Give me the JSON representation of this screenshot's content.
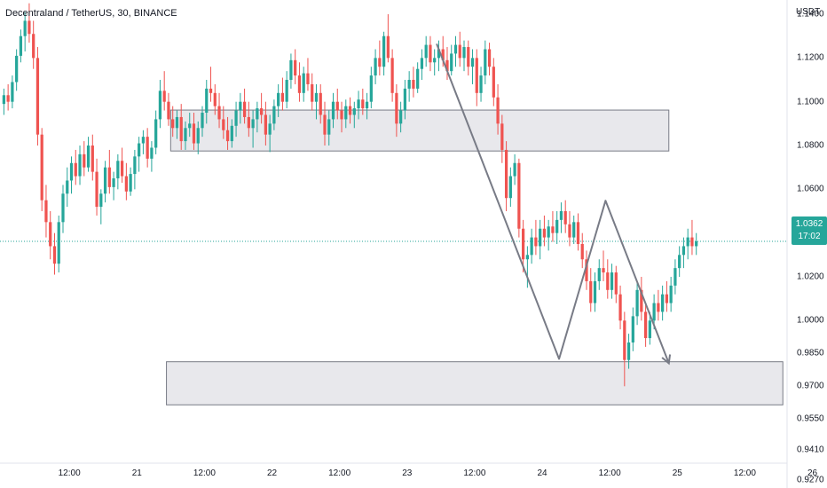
{
  "header": {
    "title": "Decentraland / TetherUS, 30, BINANCE"
  },
  "price_axis": {
    "unit": "USDT",
    "ticks": [
      "1.1400",
      "1.1200",
      "1.1000",
      "1.0800",
      "1.0600",
      "1.0400",
      "1.0200",
      "1.0000",
      "0.9850",
      "0.9700",
      "0.9550",
      "0.9410",
      "0.9270"
    ]
  },
  "time_axis": {
    "ticks": [
      "12:00",
      "21",
      "12:00",
      "22",
      "12:00",
      "23",
      "12:00",
      "24",
      "12:00",
      "25",
      "12:00",
      "26"
    ]
  },
  "last_price": {
    "value": "1.0362",
    "countdown": "17:02"
  },
  "colors": {
    "up": "#26a69a",
    "down": "#ef5350",
    "zone_fill": "#e8e8ec",
    "zone_stroke": "#787b86",
    "arrow": "#787b86",
    "last_price_line": "#26a69a"
  },
  "chart_data": {
    "type": "candlestick",
    "symbol": "Decentraland / TetherUS",
    "interval": "30",
    "exchange": "BINANCE",
    "ylabel": "USDT",
    "ylim": [
      0.9235,
      1.1465
    ],
    "xlim": [
      0,
      186
    ],
    "last_price": 1.0362,
    "ohlc": [
      {
        "o": 1.099,
        "h": 1.106,
        "l": 1.094,
        "c": 1.103
      },
      {
        "o": 1.103,
        "h": 1.108,
        "l": 1.096,
        "c": 1.1
      },
      {
        "o": 1.1,
        "h": 1.112,
        "l": 1.097,
        "c": 1.109
      },
      {
        "o": 1.109,
        "h": 1.124,
        "l": 1.105,
        "c": 1.121
      },
      {
        "o": 1.121,
        "h": 1.133,
        "l": 1.118,
        "c": 1.13
      },
      {
        "o": 1.13,
        "h": 1.141,
        "l": 1.123,
        "c": 1.137
      },
      {
        "o": 1.137,
        "h": 1.145,
        "l": 1.127,
        "c": 1.131
      },
      {
        "o": 1.131,
        "h": 1.137,
        "l": 1.115,
        "c": 1.12
      },
      {
        "o": 1.12,
        "h": 1.125,
        "l": 1.08,
        "c": 1.085
      },
      {
        "o": 1.085,
        "h": 1.088,
        "l": 1.05,
        "c": 1.055
      },
      {
        "o": 1.055,
        "h": 1.062,
        "l": 1.038,
        "c": 1.045
      },
      {
        "o": 1.045,
        "h": 1.05,
        "l": 1.028,
        "c": 1.034
      },
      {
        "o": 1.034,
        "h": 1.04,
        "l": 1.021,
        "c": 1.026
      },
      {
        "o": 1.026,
        "h": 1.048,
        "l": 1.022,
        "c": 1.045
      },
      {
        "o": 1.045,
        "h": 1.062,
        "l": 1.04,
        "c": 1.058
      },
      {
        "o": 1.058,
        "h": 1.07,
        "l": 1.052,
        "c": 1.064
      },
      {
        "o": 1.064,
        "h": 1.075,
        "l": 1.058,
        "c": 1.072
      },
      {
        "o": 1.072,
        "h": 1.078,
        "l": 1.062,
        "c": 1.066
      },
      {
        "o": 1.066,
        "h": 1.08,
        "l": 1.062,
        "c": 1.076
      },
      {
        "o": 1.076,
        "h": 1.082,
        "l": 1.066,
        "c": 1.07
      },
      {
        "o": 1.07,
        "h": 1.084,
        "l": 1.068,
        "c": 1.08
      },
      {
        "o": 1.08,
        "h": 1.085,
        "l": 1.064,
        "c": 1.068
      },
      {
        "o": 1.068,
        "h": 1.074,
        "l": 1.048,
        "c": 1.052
      },
      {
        "o": 1.052,
        "h": 1.06,
        "l": 1.044,
        "c": 1.058
      },
      {
        "o": 1.058,
        "h": 1.073,
        "l": 1.054,
        "c": 1.07
      },
      {
        "o": 1.07,
        "h": 1.078,
        "l": 1.058,
        "c": 1.061
      },
      {
        "o": 1.061,
        "h": 1.068,
        "l": 1.055,
        "c": 1.065
      },
      {
        "o": 1.065,
        "h": 1.076,
        "l": 1.06,
        "c": 1.073
      },
      {
        "o": 1.073,
        "h": 1.079,
        "l": 1.063,
        "c": 1.066
      },
      {
        "o": 1.066,
        "h": 1.072,
        "l": 1.055,
        "c": 1.059
      },
      {
        "o": 1.059,
        "h": 1.07,
        "l": 1.057,
        "c": 1.067
      },
      {
        "o": 1.067,
        "h": 1.078,
        "l": 1.06,
        "c": 1.075
      },
      {
        "o": 1.075,
        "h": 1.084,
        "l": 1.068,
        "c": 1.081
      },
      {
        "o": 1.081,
        "h": 1.087,
        "l": 1.076,
        "c": 1.084
      },
      {
        "o": 1.084,
        "h": 1.088,
        "l": 1.07,
        "c": 1.074
      },
      {
        "o": 1.074,
        "h": 1.082,
        "l": 1.068,
        "c": 1.079
      },
      {
        "o": 1.079,
        "h": 1.096,
        "l": 1.076,
        "c": 1.092
      },
      {
        "o": 1.092,
        "h": 1.11,
        "l": 1.088,
        "c": 1.105
      },
      {
        "o": 1.105,
        "h": 1.114,
        "l": 1.096,
        "c": 1.1
      },
      {
        "o": 1.1,
        "h": 1.104,
        "l": 1.089,
        "c": 1.092
      },
      {
        "o": 1.092,
        "h": 1.098,
        "l": 1.084,
        "c": 1.088
      },
      {
        "o": 1.088,
        "h": 1.096,
        "l": 1.083,
        "c": 1.093
      },
      {
        "o": 1.093,
        "h": 1.099,
        "l": 1.078,
        "c": 1.082
      },
      {
        "o": 1.082,
        "h": 1.091,
        "l": 1.078,
        "c": 1.088
      },
      {
        "o": 1.088,
        "h": 1.095,
        "l": 1.084,
        "c": 1.09
      },
      {
        "o": 1.09,
        "h": 1.095,
        "l": 1.078,
        "c": 1.081
      },
      {
        "o": 1.081,
        "h": 1.091,
        "l": 1.076,
        "c": 1.088
      },
      {
        "o": 1.088,
        "h": 1.098,
        "l": 1.084,
        "c": 1.095
      },
      {
        "o": 1.095,
        "h": 1.11,
        "l": 1.09,
        "c": 1.106
      },
      {
        "o": 1.106,
        "h": 1.116,
        "l": 1.1,
        "c": 1.104
      },
      {
        "o": 1.104,
        "h": 1.108,
        "l": 1.094,
        "c": 1.098
      },
      {
        "o": 1.098,
        "h": 1.104,
        "l": 1.088,
        "c": 1.092
      },
      {
        "o": 1.092,
        "h": 1.098,
        "l": 1.083,
        "c": 1.087
      },
      {
        "o": 1.087,
        "h": 1.093,
        "l": 1.078,
        "c": 1.082
      },
      {
        "o": 1.082,
        "h": 1.092,
        "l": 1.079,
        "c": 1.089
      },
      {
        "o": 1.089,
        "h": 1.1,
        "l": 1.084,
        "c": 1.096
      },
      {
        "o": 1.096,
        "h": 1.104,
        "l": 1.09,
        "c": 1.1
      },
      {
        "o": 1.1,
        "h": 1.106,
        "l": 1.09,
        "c": 1.093
      },
      {
        "o": 1.093,
        "h": 1.1,
        "l": 1.084,
        "c": 1.088
      },
      {
        "o": 1.088,
        "h": 1.096,
        "l": 1.079,
        "c": 1.092
      },
      {
        "o": 1.092,
        "h": 1.1,
        "l": 1.086,
        "c": 1.097
      },
      {
        "o": 1.097,
        "h": 1.104,
        "l": 1.09,
        "c": 1.094
      },
      {
        "o": 1.094,
        "h": 1.1,
        "l": 1.08,
        "c": 1.085
      },
      {
        "o": 1.085,
        "h": 1.094,
        "l": 1.077,
        "c": 1.09
      },
      {
        "o": 1.09,
        "h": 1.101,
        "l": 1.087,
        "c": 1.098
      },
      {
        "o": 1.098,
        "h": 1.108,
        "l": 1.093,
        "c": 1.104
      },
      {
        "o": 1.104,
        "h": 1.111,
        "l": 1.096,
        "c": 1.1
      },
      {
        "o": 1.1,
        "h": 1.114,
        "l": 1.097,
        "c": 1.11
      },
      {
        "o": 1.11,
        "h": 1.122,
        "l": 1.106,
        "c": 1.119
      },
      {
        "o": 1.119,
        "h": 1.124,
        "l": 1.108,
        "c": 1.112
      },
      {
        "o": 1.112,
        "h": 1.118,
        "l": 1.1,
        "c": 1.104
      },
      {
        "o": 1.104,
        "h": 1.116,
        "l": 1.1,
        "c": 1.113
      },
      {
        "o": 1.113,
        "h": 1.12,
        "l": 1.105,
        "c": 1.108
      },
      {
        "o": 1.108,
        "h": 1.113,
        "l": 1.096,
        "c": 1.1
      },
      {
        "o": 1.1,
        "h": 1.108,
        "l": 1.092,
        "c": 1.104
      },
      {
        "o": 1.104,
        "h": 1.108,
        "l": 1.09,
        "c": 1.094
      },
      {
        "o": 1.094,
        "h": 1.1,
        "l": 1.08,
        "c": 1.085
      },
      {
        "o": 1.085,
        "h": 1.096,
        "l": 1.08,
        "c": 1.092
      },
      {
        "o": 1.092,
        "h": 1.104,
        "l": 1.088,
        "c": 1.1
      },
      {
        "o": 1.1,
        "h": 1.106,
        "l": 1.092,
        "c": 1.096
      },
      {
        "o": 1.096,
        "h": 1.1,
        "l": 1.086,
        "c": 1.092
      },
      {
        "o": 1.092,
        "h": 1.101,
        "l": 1.088,
        "c": 1.098
      },
      {
        "o": 1.098,
        "h": 1.102,
        "l": 1.09,
        "c": 1.094
      },
      {
        "o": 1.094,
        "h": 1.1,
        "l": 1.088,
        "c": 1.097
      },
      {
        "o": 1.097,
        "h": 1.105,
        "l": 1.092,
        "c": 1.101
      },
      {
        "o": 1.101,
        "h": 1.106,
        "l": 1.094,
        "c": 1.097
      },
      {
        "o": 1.097,
        "h": 1.104,
        "l": 1.092,
        "c": 1.1
      },
      {
        "o": 1.1,
        "h": 1.116,
        "l": 1.097,
        "c": 1.112
      },
      {
        "o": 1.112,
        "h": 1.124,
        "l": 1.108,
        "c": 1.12
      },
      {
        "o": 1.12,
        "h": 1.128,
        "l": 1.112,
        "c": 1.116
      },
      {
        "o": 1.116,
        "h": 1.132,
        "l": 1.112,
        "c": 1.13
      },
      {
        "o": 1.13,
        "h": 1.14,
        "l": 1.118,
        "c": 1.12
      },
      {
        "o": 1.12,
        "h": 1.124,
        "l": 1.1,
        "c": 1.104
      },
      {
        "o": 1.104,
        "h": 1.108,
        "l": 1.084,
        "c": 1.09
      },
      {
        "o": 1.09,
        "h": 1.1,
        "l": 1.086,
        "c": 1.096
      },
      {
        "o": 1.096,
        "h": 1.11,
        "l": 1.092,
        "c": 1.106
      },
      {
        "o": 1.106,
        "h": 1.114,
        "l": 1.1,
        "c": 1.11
      },
      {
        "o": 1.11,
        "h": 1.116,
        "l": 1.102,
        "c": 1.106
      },
      {
        "o": 1.106,
        "h": 1.118,
        "l": 1.104,
        "c": 1.115
      },
      {
        "o": 1.115,
        "h": 1.124,
        "l": 1.11,
        "c": 1.12
      },
      {
        "o": 1.12,
        "h": 1.13,
        "l": 1.116,
        "c": 1.126
      },
      {
        "o": 1.126,
        "h": 1.13,
        "l": 1.114,
        "c": 1.118
      },
      {
        "o": 1.118,
        "h": 1.124,
        "l": 1.112,
        "c": 1.12
      },
      {
        "o": 1.12,
        "h": 1.128,
        "l": 1.114,
        "c": 1.124
      },
      {
        "o": 1.124,
        "h": 1.13,
        "l": 1.116,
        "c": 1.119
      },
      {
        "o": 1.119,
        "h": 1.125,
        "l": 1.11,
        "c": 1.114
      },
      {
        "o": 1.114,
        "h": 1.126,
        "l": 1.112,
        "c": 1.122
      },
      {
        "o": 1.122,
        "h": 1.13,
        "l": 1.116,
        "c": 1.126
      },
      {
        "o": 1.126,
        "h": 1.132,
        "l": 1.116,
        "c": 1.12
      },
      {
        "o": 1.12,
        "h": 1.128,
        "l": 1.114,
        "c": 1.125
      },
      {
        "o": 1.125,
        "h": 1.128,
        "l": 1.112,
        "c": 1.116
      },
      {
        "o": 1.116,
        "h": 1.124,
        "l": 1.108,
        "c": 1.12
      },
      {
        "o": 1.12,
        "h": 1.124,
        "l": 1.098,
        "c": 1.104
      },
      {
        "o": 1.104,
        "h": 1.116,
        "l": 1.1,
        "c": 1.112
      },
      {
        "o": 1.112,
        "h": 1.128,
        "l": 1.108,
        "c": 1.124
      },
      {
        "o": 1.124,
        "h": 1.127,
        "l": 1.112,
        "c": 1.116
      },
      {
        "o": 1.116,
        "h": 1.12,
        "l": 1.098,
        "c": 1.102
      },
      {
        "o": 1.102,
        "h": 1.108,
        "l": 1.085,
        "c": 1.09
      },
      {
        "o": 1.09,
        "h": 1.094,
        "l": 1.072,
        "c": 1.078
      },
      {
        "o": 1.078,
        "h": 1.082,
        "l": 1.05,
        "c": 1.056
      },
      {
        "o": 1.056,
        "h": 1.07,
        "l": 1.052,
        "c": 1.066
      },
      {
        "o": 1.066,
        "h": 1.076,
        "l": 1.062,
        "c": 1.072
      },
      {
        "o": 1.072,
        "h": 1.074,
        "l": 1.038,
        "c": 1.042
      },
      {
        "o": 1.042,
        "h": 1.046,
        "l": 1.022,
        "c": 1.028
      },
      {
        "o": 1.028,
        "h": 1.034,
        "l": 1.015,
        "c": 1.03
      },
      {
        "o": 1.03,
        "h": 1.042,
        "l": 1.026,
        "c": 1.038
      },
      {
        "o": 1.038,
        "h": 1.046,
        "l": 1.03,
        "c": 1.034
      },
      {
        "o": 1.034,
        "h": 1.046,
        "l": 1.028,
        "c": 1.042
      },
      {
        "o": 1.042,
        "h": 1.048,
        "l": 1.034,
        "c": 1.038
      },
      {
        "o": 1.038,
        "h": 1.046,
        "l": 1.032,
        "c": 1.043
      },
      {
        "o": 1.043,
        "h": 1.05,
        "l": 1.036,
        "c": 1.04
      },
      {
        "o": 1.04,
        "h": 1.05,
        "l": 1.035,
        "c": 1.046
      },
      {
        "o": 1.046,
        "h": 1.054,
        "l": 1.04,
        "c": 1.05
      },
      {
        "o": 1.05,
        "h": 1.055,
        "l": 1.04,
        "c": 1.044
      },
      {
        "o": 1.044,
        "h": 1.05,
        "l": 1.034,
        "c": 1.038
      },
      {
        "o": 1.038,
        "h": 1.048,
        "l": 1.035,
        "c": 1.045
      },
      {
        "o": 1.045,
        "h": 1.049,
        "l": 1.032,
        "c": 1.035
      },
      {
        "o": 1.035,
        "h": 1.04,
        "l": 1.024,
        "c": 1.028
      },
      {
        "o": 1.028,
        "h": 1.032,
        "l": 1.014,
        "c": 1.018
      },
      {
        "o": 1.018,
        "h": 1.024,
        "l": 1.004,
        "c": 1.008
      },
      {
        "o": 1.008,
        "h": 1.022,
        "l": 1.004,
        "c": 1.018
      },
      {
        "o": 1.018,
        "h": 1.028,
        "l": 1.014,
        "c": 1.024
      },
      {
        "o": 1.024,
        "h": 1.032,
        "l": 1.018,
        "c": 1.022
      },
      {
        "o": 1.022,
        "h": 1.028,
        "l": 1.01,
        "c": 1.014
      },
      {
        "o": 1.014,
        "h": 1.026,
        "l": 1.01,
        "c": 1.022
      },
      {
        "o": 1.022,
        "h": 1.025,
        "l": 1.008,
        "c": 1.012
      },
      {
        "o": 1.012,
        "h": 1.016,
        "l": 0.996,
        "c": 1.0
      },
      {
        "o": 1.0,
        "h": 1.004,
        "l": 0.97,
        "c": 0.982
      },
      {
        "o": 0.982,
        "h": 0.994,
        "l": 0.978,
        "c": 0.99
      },
      {
        "o": 0.99,
        "h": 1.006,
        "l": 0.986,
        "c": 1.002
      },
      {
        "o": 1.002,
        "h": 1.018,
        "l": 0.998,
        "c": 1.014
      },
      {
        "o": 1.014,
        "h": 1.02,
        "l": 1.0,
        "c": 1.004
      },
      {
        "o": 1.004,
        "h": 1.008,
        "l": 0.988,
        "c": 0.992
      },
      {
        "o": 0.992,
        "h": 1.004,
        "l": 0.989,
        "c": 1.0
      },
      {
        "o": 1.0,
        "h": 1.012,
        "l": 0.996,
        "c": 1.008
      },
      {
        "o": 1.008,
        "h": 1.014,
        "l": 1.0,
        "c": 1.004
      },
      {
        "o": 1.004,
        "h": 1.016,
        "l": 1.0,
        "c": 1.012
      },
      {
        "o": 1.012,
        "h": 1.018,
        "l": 1.004,
        "c": 1.008
      },
      {
        "o": 1.008,
        "h": 1.02,
        "l": 1.004,
        "c": 1.016
      },
      {
        "o": 1.016,
        "h": 1.028,
        "l": 1.012,
        "c": 1.024
      },
      {
        "o": 1.024,
        "h": 1.034,
        "l": 1.02,
        "c": 1.03
      },
      {
        "o": 1.03,
        "h": 1.038,
        "l": 1.024,
        "c": 1.034
      },
      {
        "o": 1.034,
        "h": 1.042,
        "l": 1.028,
        "c": 1.038
      },
      {
        "o": 1.038,
        "h": 1.046,
        "l": 1.03,
        "c": 1.034
      },
      {
        "o": 1.034,
        "h": 1.04,
        "l": 1.03,
        "c": 1.0362
      }
    ],
    "zones": [
      {
        "name": "resistance",
        "t_start": 40,
        "t_end": 158,
        "price_low": 1.0775,
        "price_high": 1.0962
      },
      {
        "name": "support",
        "t_start": 39,
        "t_end": 185,
        "price_low": 0.9615,
        "price_high": 0.9812
      }
    ],
    "path": [
      {
        "t": 103,
        "price": 1.1265
      },
      {
        "t": 132,
        "price": 0.9825
      },
      {
        "t": 143,
        "price": 1.0548
      },
      {
        "t": 158,
        "price": 0.9805
      }
    ],
    "y_axis_ticks": [
      1.14,
      1.12,
      1.1,
      1.08,
      1.06,
      1.04,
      1.02,
      1.0,
      0.985,
      0.97,
      0.955,
      0.941,
      0.927
    ],
    "x_axis_ticks": [
      {
        "label": "12:00",
        "t": 16
      },
      {
        "label": "21",
        "t": 32
      },
      {
        "label": "12:00",
        "t": 48
      },
      {
        "label": "22",
        "t": 64
      },
      {
        "label": "12:00",
        "t": 80
      },
      {
        "label": "23",
        "t": 96
      },
      {
        "label": "12:00",
        "t": 112
      },
      {
        "label": "24",
        "t": 128
      },
      {
        "label": "12:00",
        "t": 144
      },
      {
        "label": "25",
        "t": 160
      },
      {
        "label": "12:00",
        "t": 176
      },
      {
        "label": "26",
        "t": 192
      }
    ]
  }
}
